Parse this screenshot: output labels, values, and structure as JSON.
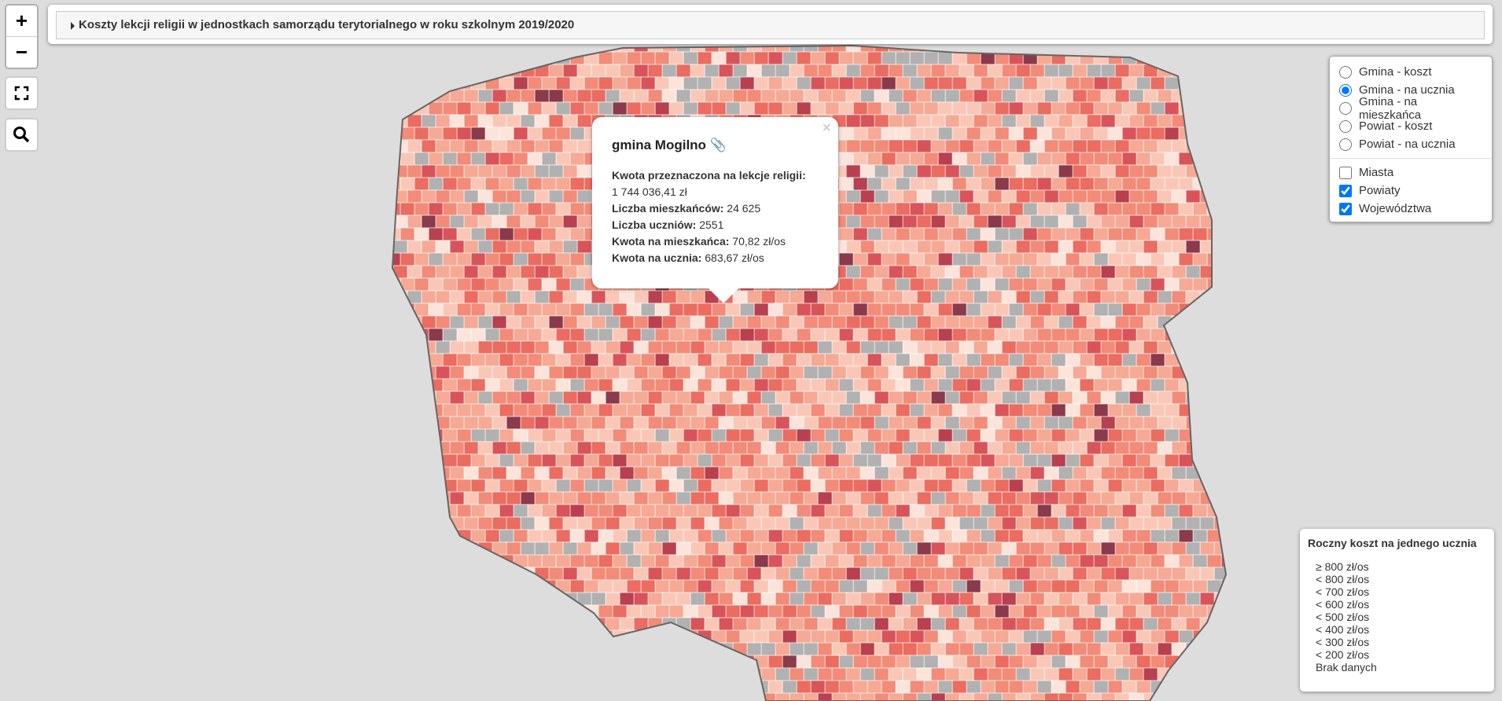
{
  "controls": {
    "zoom_in": "+",
    "zoom_out": "−",
    "close": "×"
  },
  "header": {
    "title": "Koszty lekcji religii w jednostkach samorządu terytorialnego w roku szkolnym 2019/2020"
  },
  "layers": {
    "base": [
      {
        "label": "Gmina - koszt",
        "checked": false
      },
      {
        "label": "Gmina - na ucznia",
        "checked": true
      },
      {
        "label": "Gmina - na mieszkańca",
        "checked": false
      },
      {
        "label": "Powiat - koszt",
        "checked": false
      },
      {
        "label": "Powiat - na ucznia",
        "checked": false
      }
    ],
    "overlays": [
      {
        "label": "Miasta",
        "checked": false
      },
      {
        "label": "Powiaty",
        "checked": true
      },
      {
        "label": "Województwa",
        "checked": true
      }
    ]
  },
  "popup": {
    "title": "gmina Mogilno",
    "fields": [
      {
        "label": "Kwota przeznaczona na lekcje religii:",
        "value": "1 744 036,41 zł"
      },
      {
        "label": "Liczba mieszkańców:",
        "value": "24 625"
      },
      {
        "label": "Liczba uczniów:",
        "value": "2551"
      },
      {
        "label": "Kwota na mieszkańca:",
        "value": "70,82 zł/os"
      },
      {
        "label": "Kwota na ucznia:",
        "value": "683,67 zł/os"
      }
    ]
  },
  "legend": {
    "title": "Roczny koszt na jednego ucznia",
    "items": [
      {
        "label": "≥ 800 zł/os",
        "color": "#8a3a4b"
      },
      {
        "label": "< 800 zł/os",
        "color": "#b8404f"
      },
      {
        "label": "< 700 zł/os",
        "color": "#d9545a"
      },
      {
        "label": "< 600 zł/os",
        "color": "#eb6c60"
      },
      {
        "label": "< 500 zł/os",
        "color": "#f28b78"
      },
      {
        "label": "< 400 zł/os",
        "color": "#f6a994"
      },
      {
        "label": "< 300 zł/os",
        "color": "#fac7b7"
      },
      {
        "label": "< 200 zł/os",
        "color": "#fde4db"
      },
      {
        "label": "Brak danych",
        "color": "#b1b1b1"
      }
    ]
  }
}
